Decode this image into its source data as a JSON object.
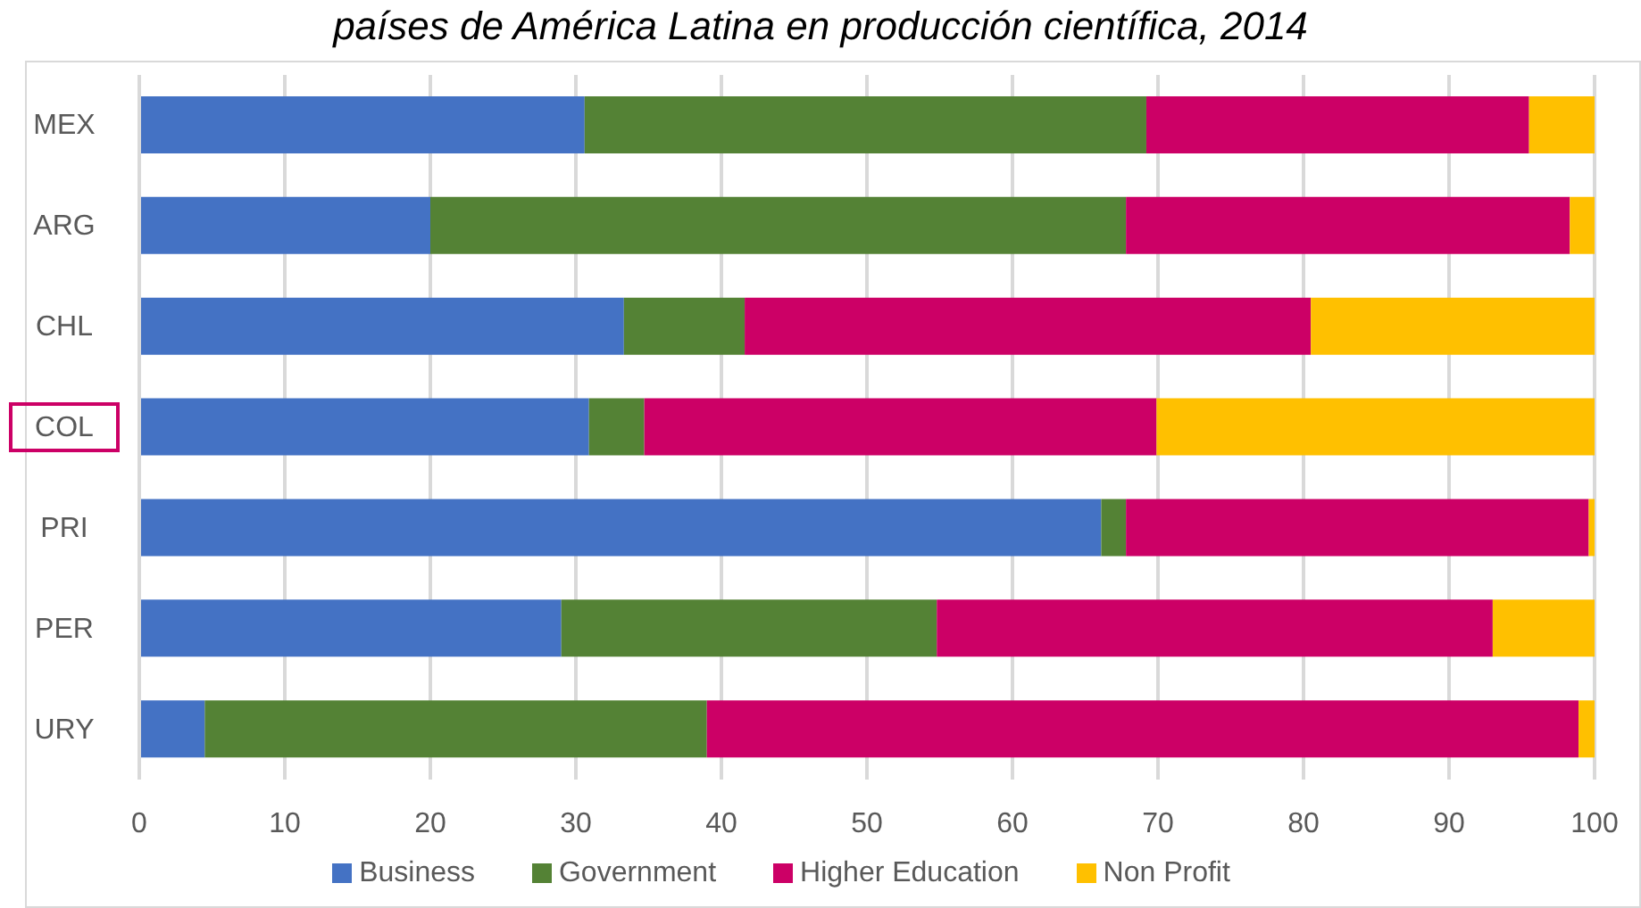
{
  "chart_data": {
    "type": "bar",
    "orientation": "horizontal",
    "stacked": true,
    "title": "países de América Latina en producción científica, 2014",
    "categories": [
      "MEX",
      "ARG",
      "CHL",
      "COL",
      "PRI",
      "PER",
      "URY"
    ],
    "series": [
      {
        "name": "Business",
        "color": "#4472c4",
        "values": [
          30.6,
          20.0,
          33.3,
          30.9,
          66.1,
          29.0,
          4.5
        ]
      },
      {
        "name": "Government",
        "color": "#548235",
        "values": [
          38.6,
          47.8,
          8.3,
          3.8,
          1.7,
          25.8,
          34.5
        ]
      },
      {
        "name": "Higher Education",
        "color": "#cc0066",
        "values": [
          26.3,
          30.5,
          38.9,
          35.2,
          31.8,
          38.2,
          59.9
        ]
      },
      {
        "name": "Non Profit",
        "color": "#ffc000",
        "values": [
          4.5,
          1.7,
          19.5,
          30.1,
          0.4,
          7.0,
          1.1
        ]
      }
    ],
    "xlim": [
      0,
      100
    ],
    "xticks": [
      0,
      10,
      20,
      30,
      40,
      50,
      60,
      70,
      80,
      90,
      100
    ],
    "grid": "x",
    "legend": "bottom"
  }
}
